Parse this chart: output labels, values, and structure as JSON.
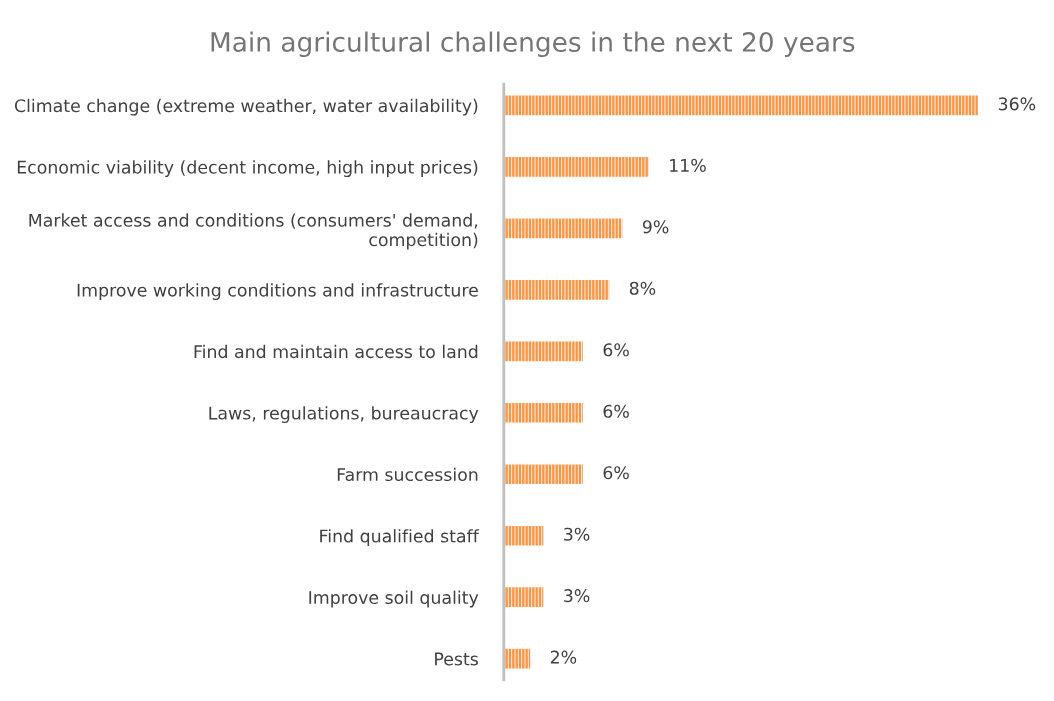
{
  "chart_data": {
    "type": "bar",
    "orientation": "horizontal",
    "title": "Main agricultural challenges in the next 20 years",
    "categories": [
      "Climate change (extreme weather, water availability)",
      "Economic viability (decent income, high input prices)",
      "Market access and conditions (consumers' demand,\ncompetition)",
      "Improve working conditions and infrastructure",
      "Find and maintain access to land",
      "Laws, regulations, bureaucracy",
      "Farm succession",
      "Find qualified staff",
      "Improve soil quality",
      "Pests"
    ],
    "values": [
      36,
      11,
      9,
      8,
      6,
      6,
      6,
      3,
      3,
      2
    ],
    "value_labels": [
      "36%",
      "11%",
      "9%",
      "8%",
      "6%",
      "6%",
      "6%",
      "3%",
      "3%",
      "2%"
    ],
    "color": "#f79646",
    "grid": false,
    "legend": false,
    "tick_labels": "y"
  }
}
